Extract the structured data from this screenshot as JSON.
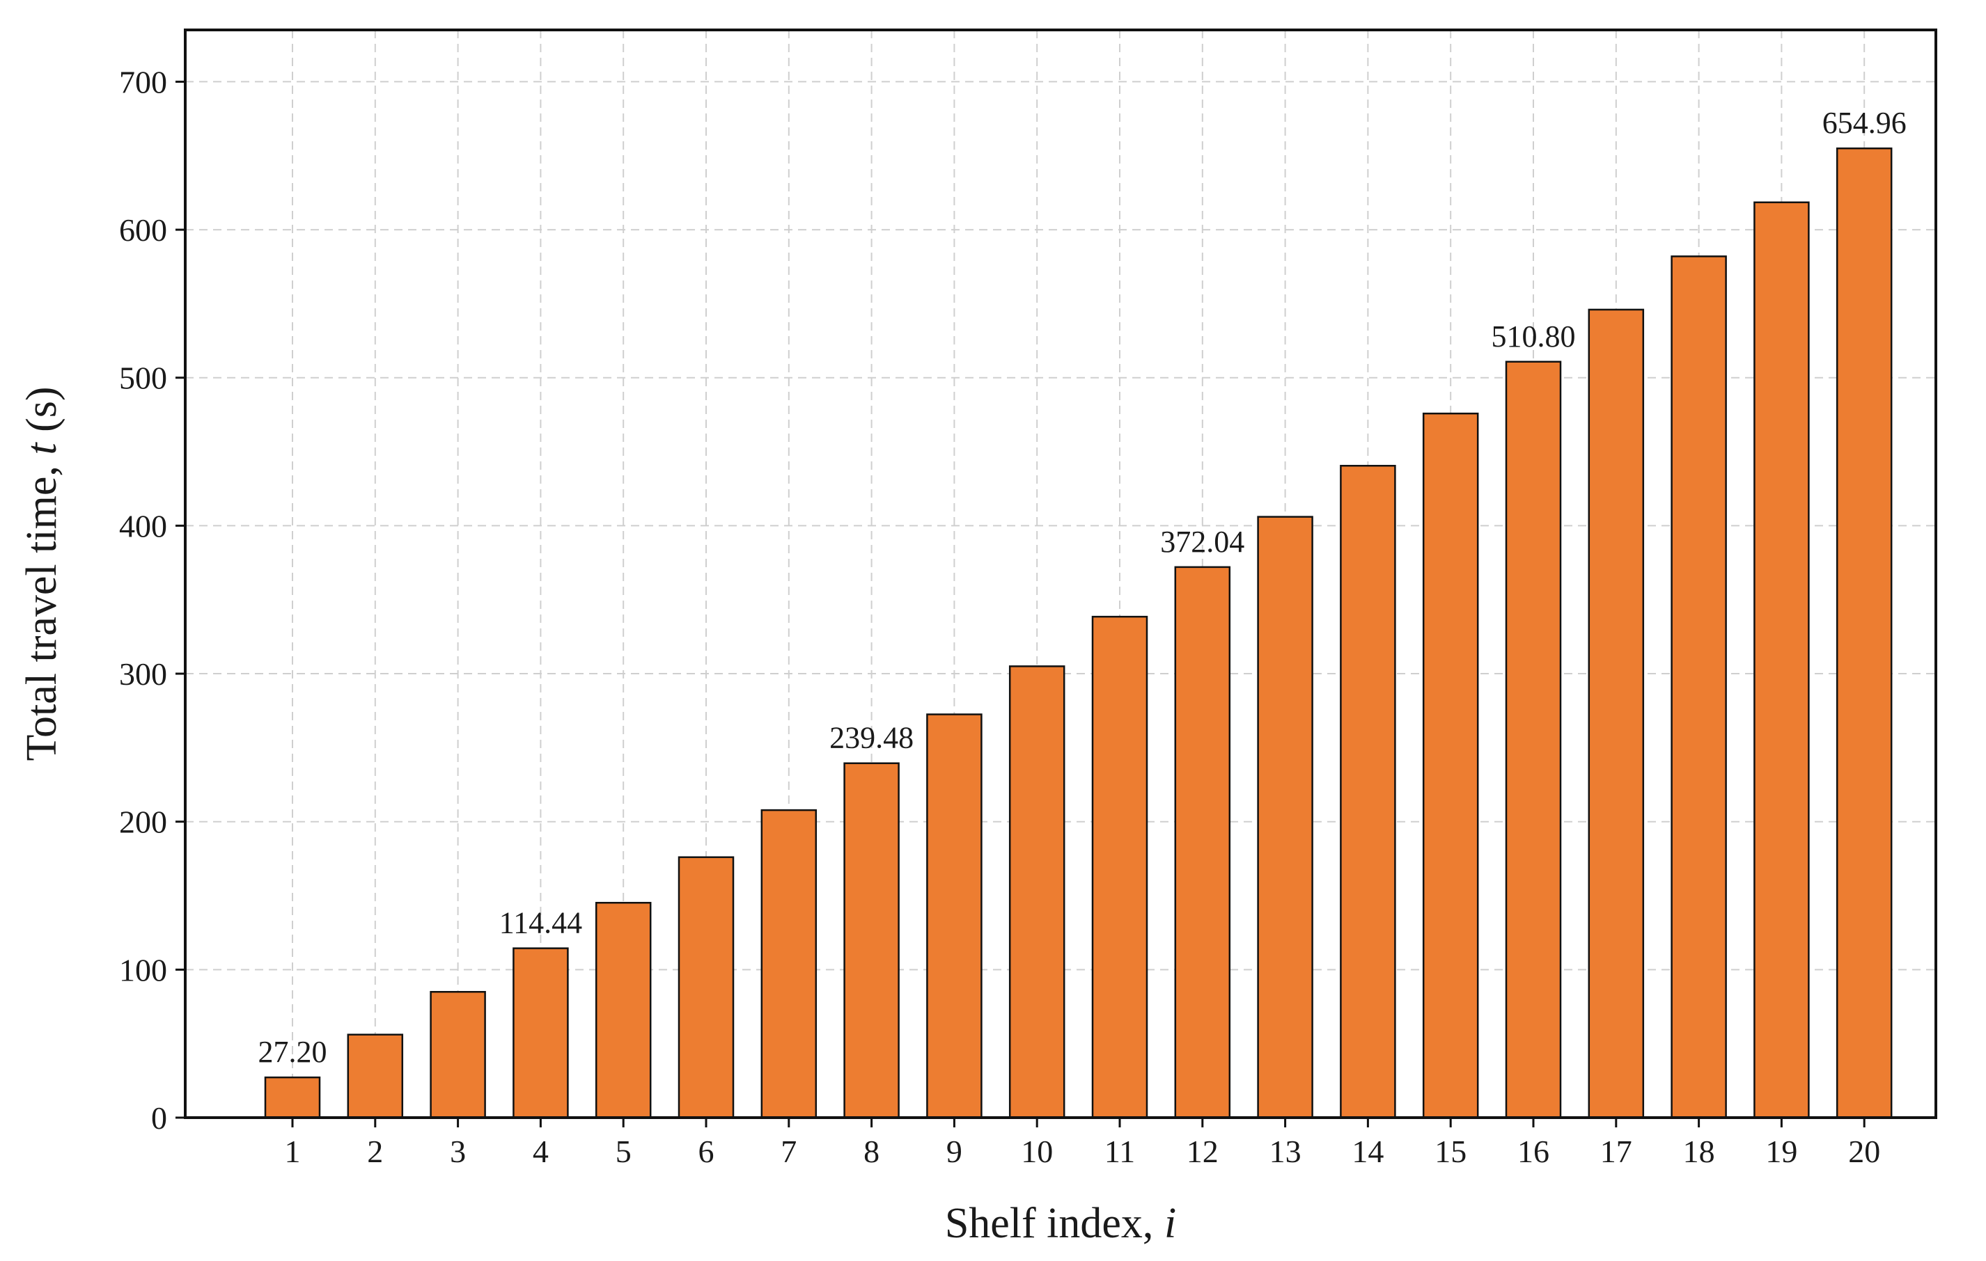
{
  "chart_data": {
    "type": "bar",
    "categories": [
      "1",
      "2",
      "3",
      "4",
      "5",
      "6",
      "7",
      "8",
      "9",
      "10",
      "11",
      "12",
      "13",
      "14",
      "15",
      "16",
      "17",
      "18",
      "19",
      "20"
    ],
    "values": [
      27.2,
      56.1,
      85.0,
      114.44,
      145.2,
      176.0,
      207.8,
      239.48,
      272.5,
      305.0,
      338.5,
      372.04,
      406.0,
      440.5,
      475.8,
      510.8,
      546.0,
      582.0,
      618.5,
      654.96
    ],
    "data_labels": [
      {
        "index": 0,
        "text": "27.20"
      },
      {
        "index": 3,
        "text": "114.44"
      },
      {
        "index": 7,
        "text": "239.48"
      },
      {
        "index": 11,
        "text": "372.04"
      },
      {
        "index": 15,
        "text": "510.80"
      },
      {
        "index": 19,
        "text": "654.96"
      }
    ],
    "xlabel": "Shelf index, ",
    "xlabel_var": "i",
    "ylabel": "Total travel time, ",
    "ylabel_var": "t",
    "ylabel_unit": " (s)",
    "ylim": [
      0,
      735
    ],
    "yticks": [
      0,
      100,
      200,
      300,
      400,
      500,
      600,
      700
    ],
    "grid": true,
    "bar_color": "#ED7D31",
    "edge_color": "#111111"
  }
}
